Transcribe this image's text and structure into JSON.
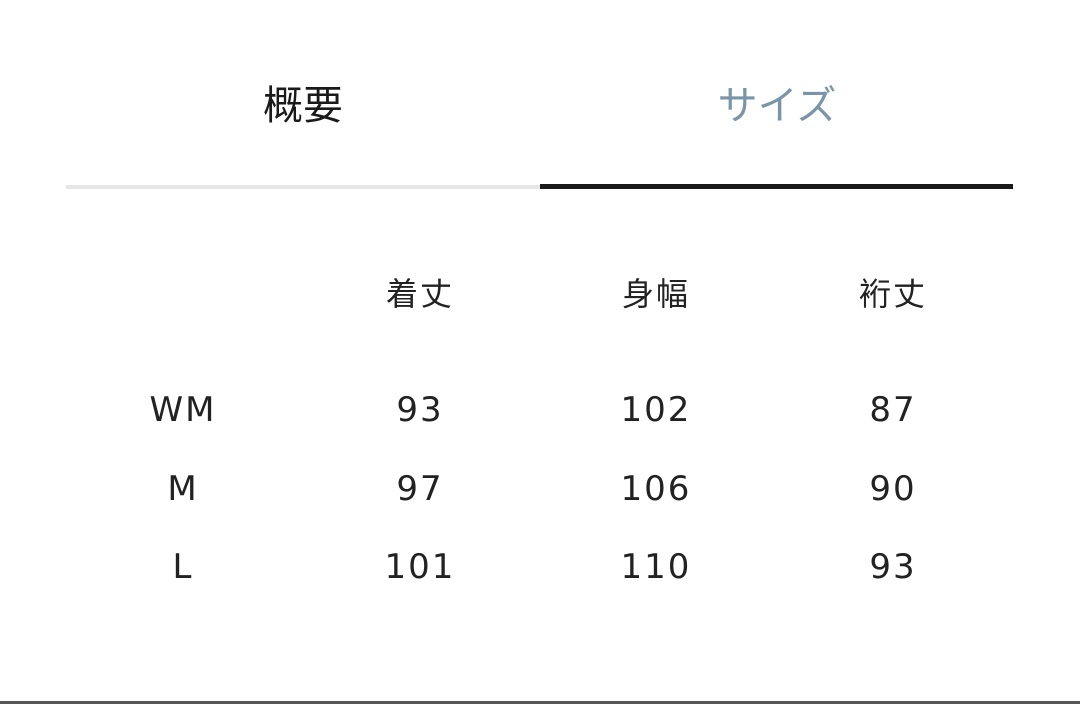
{
  "tabs": [
    {
      "label": "概要",
      "active": false
    },
    {
      "label": "サイズ",
      "active": true
    }
  ],
  "colors": {
    "active_tab_text": "#7a94a8",
    "active_indicator": "#1a1a1a",
    "inactive_indicator": "#e6e6e6"
  },
  "table": {
    "headers": [
      "",
      "着丈",
      "身幅",
      "裄丈"
    ],
    "rows": [
      [
        "WM",
        "93",
        "102",
        "87"
      ],
      [
        "M",
        "97",
        "106",
        "90"
      ],
      [
        "L",
        "101",
        "110",
        "93"
      ]
    ]
  }
}
